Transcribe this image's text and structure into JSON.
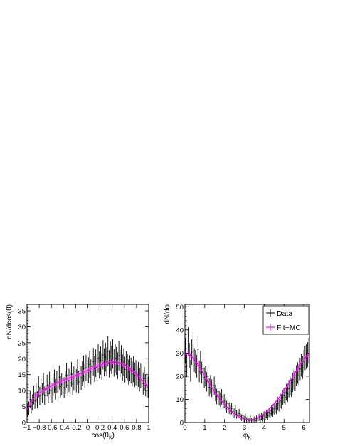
{
  "colors": {
    "data": "#000000",
    "fit": "#ff00ff",
    "frame": "#000000",
    "background": "#ffffff"
  },
  "chart_data": [
    {
      "type": "scatter",
      "xlabel_main": "cos(θ",
      "xlabel_sub": "K",
      "xlabel_close": ")",
      "ylabel": "dN/dcos(θ)",
      "xlim": [
        -1,
        1
      ],
      "ylim": [
        0,
        37
      ],
      "xticks": [
        -1,
        -0.8,
        -0.6,
        -0.4,
        -0.2,
        0,
        0.2,
        0.4,
        0.6,
        0.8,
        1
      ],
      "xtick_labels": [
        "−1",
        "−0.8",
        "-0.6",
        "-0.4",
        "-0.2",
        "0",
        "0.2",
        "0.4",
        "0.6",
        "0.8",
        "1"
      ],
      "yticks": [
        0,
        5,
        10,
        15,
        20,
        25,
        30,
        35
      ],
      "ytick_labels": [
        "0",
        "5",
        "10",
        "15",
        "20",
        "25",
        "30",
        "35"
      ],
      "grid": false,
      "series": [
        {
          "name": "Data",
          "x_range": [
            -1,
            1
          ],
          "bins": 100,
          "error_bars": "sqrt",
          "y": [
            3.8,
            4.5,
            7.2,
            5.1,
            6.3,
            8.6,
            6.9,
            9.4,
            7.1,
            11.2,
            8.3,
            10.5,
            9.2,
            12.1,
            8.4,
            10.3,
            11.6,
            9.0,
            12.4,
            10.1,
            9.3,
            11.8,
            13.0,
            10.4,
            12.7,
            9.8,
            14.1,
            11.3,
            12.0,
            13.6,
            10.9,
            12.5,
            14.8,
            11.7,
            13.2,
            12.4,
            15.1,
            12.0,
            13.9,
            14.6,
            13.1,
            15.8,
            12.7,
            16.2,
            14.0,
            15.3,
            16.9,
            14.5,
            17.1,
            15.6,
            16.4,
            18.2,
            15.9,
            17.5,
            19.0,
            16.8,
            18.6,
            17.3,
            20.1,
            18.0,
            19.4,
            17.6,
            21.2,
            18.9,
            20.5,
            19.1,
            22.3,
            18.4,
            20.8,
            19.6,
            21.5,
            18.7,
            20.2,
            19.3,
            17.8,
            20.9,
            18.5,
            19.8,
            17.2,
            18.9,
            16.6,
            18.1,
            17.4,
            15.8,
            17.0,
            16.3,
            15.2,
            16.7,
            14.9,
            15.6,
            14.3,
            15.1,
            13.4,
            14.6,
            13.0,
            12.2,
            13.7,
            11.6,
            12.4,
            11.1
          ]
        },
        {
          "name": "Fit+MC",
          "x_range": [
            -1,
            1
          ],
          "bins": 100,
          "error_bars": "sqrt",
          "y": [
            4.2,
            5.0,
            5.8,
            6.5,
            7.1,
            7.6,
            8.0,
            8.4,
            8.8,
            9.1,
            9.4,
            9.7,
            9.9,
            10.2,
            10.4,
            10.6,
            10.8,
            11.0,
            11.2,
            11.4,
            11.6,
            11.8,
            12.0,
            12.2,
            12.4,
            12.5,
            12.7,
            12.9,
            13.0,
            13.2,
            13.3,
            13.5,
            13.6,
            13.8,
            13.9,
            14.1,
            14.2,
            14.4,
            14.5,
            14.7,
            14.8,
            15.0,
            15.1,
            15.3,
            15.5,
            15.6,
            15.8,
            16.0,
            16.1,
            16.3,
            16.5,
            16.6,
            16.8,
            17.0,
            17.1,
            17.3,
            17.5,
            17.6,
            17.8,
            17.9,
            18.1,
            18.2,
            18.4,
            18.5,
            18.6,
            18.7,
            18.8,
            18.9,
            18.9,
            19.0,
            19.0,
            19.0,
            18.9,
            18.9,
            18.8,
            18.7,
            18.6,
            18.4,
            18.3,
            18.1,
            17.9,
            17.7,
            17.4,
            17.2,
            16.9,
            16.6,
            16.3,
            16.0,
            15.6,
            15.3,
            14.9,
            14.5,
            14.1,
            13.7,
            13.3,
            12.9,
            12.5,
            12.1,
            11.7,
            11.3
          ]
        }
      ]
    },
    {
      "type": "scatter",
      "xlabel_main": "φ",
      "xlabel_sub": "K",
      "ylabel": "dN/dφ",
      "xlim": [
        0,
        6.2832
      ],
      "ylim": [
        0,
        51
      ],
      "xticks": [
        0,
        1,
        2,
        3,
        4,
        5,
        6
      ],
      "xtick_labels": [
        "0",
        "1",
        "2",
        "3",
        "4",
        "5",
        "6"
      ],
      "yticks": [
        0,
        10,
        20,
        30,
        40,
        50
      ],
      "ytick_labels": [
        "0",
        "10",
        "20",
        "30",
        "40",
        "50"
      ],
      "grid": false,
      "legend": {
        "placement": "top-right",
        "entries": [
          "Data",
          "Fit+MC"
        ]
      },
      "series": [
        {
          "name": "Data",
          "x_range": [
            0,
            6.2832
          ],
          "bins": 100,
          "error_bars": "sqrt",
          "y": [
            31.0,
            24.5,
            35.2,
            29.0,
            22.3,
            30.4,
            33.1,
            27.0,
            26.2,
            24.3,
            31.5,
            22.1,
            25.8,
            21.6,
            23.2,
            19.4,
            20.1,
            17.6,
            19.8,
            15.2,
            16.4,
            14.8,
            13.7,
            15.9,
            12.8,
            11.2,
            13.4,
            10.6,
            9.9,
            11.1,
            8.7,
            9.2,
            7.9,
            6.8,
            8.1,
            6.2,
            5.3,
            6.0,
            4.8,
            4.1,
            5.2,
            3.6,
            3.0,
            3.9,
            2.7,
            2.1,
            2.9,
            1.6,
            2.4,
            1.2,
            1.5,
            0.9,
            2.0,
            1.1,
            0.7,
            1.4,
            0.8,
            1.7,
            1.0,
            2.2,
            1.3,
            2.6,
            1.8,
            3.1,
            2.4,
            3.7,
            3.0,
            4.4,
            3.8,
            5.1,
            4.6,
            5.9,
            6.8,
            6.1,
            8.2,
            7.5,
            9.4,
            8.9,
            10.8,
            11.6,
            10.9,
            13.1,
            12.4,
            14.6,
            15.8,
            14.9,
            17.3,
            18.6,
            17.9,
            20.2,
            21.4,
            20.6,
            23.1,
            24.8,
            23.7,
            26.2,
            27.9,
            28.4,
            29.3,
            31.0
          ]
        },
        {
          "name": "Fit+MC",
          "x_range": [
            0,
            6.2832
          ],
          "bins": 100,
          "error_bars": "sqrt",
          "y": [
            30.0,
            29.9,
            29.7,
            29.4,
            29.0,
            28.5,
            27.9,
            27.3,
            26.6,
            25.8,
            25.0,
            24.2,
            23.3,
            22.4,
            21.5,
            20.6,
            19.7,
            18.8,
            17.9,
            17.0,
            16.1,
            15.3,
            14.5,
            13.7,
            12.9,
            12.1,
            11.4,
            10.7,
            10.0,
            9.3,
            8.6,
            8.0,
            7.4,
            6.8,
            6.2,
            5.7,
            5.2,
            4.7,
            4.2,
            3.8,
            3.4,
            3.0,
            2.7,
            2.4,
            2.1,
            1.9,
            1.7,
            1.5,
            1.4,
            1.3,
            1.2,
            1.2,
            1.2,
            1.3,
            1.4,
            1.5,
            1.7,
            1.9,
            2.1,
            2.4,
            2.7,
            3.0,
            3.4,
            3.8,
            4.2,
            4.7,
            5.2,
            5.7,
            6.2,
            6.8,
            7.4,
            8.0,
            8.6,
            9.3,
            10.0,
            10.7,
            11.4,
            12.1,
            12.9,
            13.7,
            14.5,
            15.3,
            16.1,
            17.0,
            17.9,
            18.8,
            19.7,
            20.6,
            21.5,
            22.4,
            23.3,
            24.2,
            25.0,
            25.8,
            26.6,
            27.3,
            27.9,
            28.5,
            29.1,
            29.6
          ]
        }
      ]
    }
  ]
}
